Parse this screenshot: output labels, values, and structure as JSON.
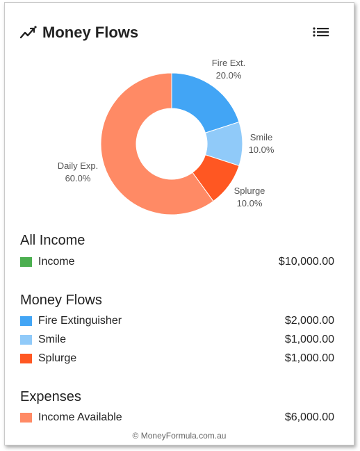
{
  "header": {
    "title": "Money Flows"
  },
  "colors": {
    "income": "#4caf50",
    "fire_ext": "#42a5f5",
    "smile": "#90caf9",
    "splurge": "#ff5722",
    "daily_exp": "#ff8a65"
  },
  "chart_data": {
    "type": "pie",
    "title": "",
    "donut": true,
    "slices": [
      {
        "label": "Fire Ext.",
        "value": 20.0,
        "value_label": "20.0%",
        "color": "#42a5f5"
      },
      {
        "label": "Smile",
        "value": 10.0,
        "value_label": "10.0%",
        "color": "#90caf9"
      },
      {
        "label": "Splurge",
        "value": 10.0,
        "value_label": "10.0%",
        "color": "#ff5722"
      },
      {
        "label": "Daily Exp.",
        "value": 60.0,
        "value_label": "60.0%",
        "color": "#ff8a65"
      }
    ]
  },
  "sections": {
    "income": {
      "title": "All Income",
      "items": [
        {
          "label": "Income",
          "amount": "$10,000.00"
        }
      ]
    },
    "flows": {
      "title": "Money Flows",
      "items": [
        {
          "label": "Fire Extinguisher",
          "amount": "$2,000.00"
        },
        {
          "label": "Smile",
          "amount": "$1,000.00"
        },
        {
          "label": "Splurge",
          "amount": "$1,000.00"
        }
      ]
    },
    "expenses": {
      "title": "Expenses",
      "items": [
        {
          "label": "Income Available",
          "amount": "$6,000.00"
        }
      ]
    }
  },
  "footer": {
    "text": "© MoneyFormula.com.au"
  }
}
